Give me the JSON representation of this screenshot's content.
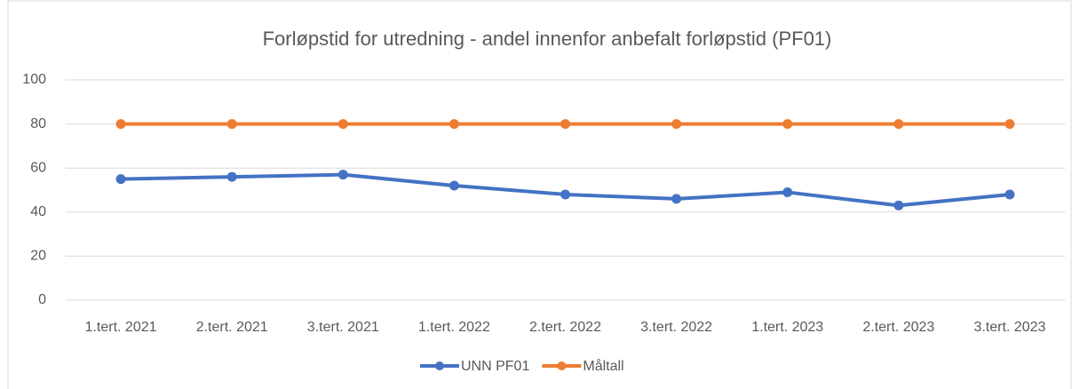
{
  "chart_data": {
    "type": "line",
    "title": "Forløpstid for utredning - andel innenfor anbefalt forløpstid (PF01)",
    "categories": [
      "1.tert. 2021",
      "2.tert. 2021",
      "3.tert. 2021",
      "1.tert. 2022",
      "2.tert. 2022",
      "3.tert. 2022",
      "1.tert. 2023",
      "2.tert. 2023",
      "3.tert. 2023"
    ],
    "series": [
      {
        "name": "UNN PF01",
        "color": "#4472c4",
        "values": [
          55,
          56,
          57,
          52,
          48,
          46,
          49,
          43,
          48
        ]
      },
      {
        "name": "Måltall",
        "color": "#ed7d31",
        "values": [
          80,
          80,
          80,
          80,
          80,
          80,
          80,
          80,
          80
        ]
      }
    ],
    "ylim": [
      0,
      100
    ],
    "yticks": [
      0,
      20,
      40,
      60,
      80,
      100
    ],
    "grid": true,
    "legend": "bottom"
  }
}
